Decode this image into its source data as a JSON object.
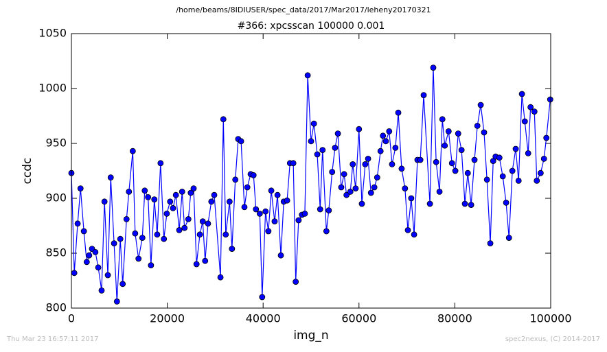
{
  "chart_data": {
    "type": "line",
    "suptitle": "/home/beams/8IDIUSER/spec_data/2017/Mar2017/leheny20170321",
    "title": "#366: xpcsscan 100000 0.001",
    "xlabel": "img_n",
    "ylabel": "ccdc",
    "footer_left": "Thu Mar 23 16:57:11 2017",
    "footer_right": "spec2nexus, (C) 2014-2017",
    "xlim": [
      0,
      100000
    ],
    "ylim": [
      800,
      1050
    ],
    "xticks": [
      0,
      20000,
      40000,
      60000,
      80000,
      100000
    ],
    "yticks": [
      800,
      850,
      900,
      950,
      1000,
      1050
    ],
    "grid": false,
    "color": "#0000ff",
    "x": [
      0,
      600,
      1300,
      1900,
      2600,
      3200,
      3700,
      4300,
      5000,
      5600,
      6300,
      6900,
      7600,
      8200,
      8900,
      9500,
      10200,
      10700,
      11500,
      12000,
      12800,
      13300,
      14000,
      14800,
      15300,
      16000,
      16600,
      17300,
      17900,
      18600,
      19300,
      19900,
      20600,
      21200,
      21800,
      22500,
      23100,
      23600,
      24400,
      24900,
      25500,
      26100,
      26800,
      27400,
      27900,
      28500,
      29200,
      29800,
      31100,
      31700,
      32200,
      33000,
      33500,
      34200,
      34800,
      35400,
      36100,
      36700,
      37400,
      38000,
      38500,
      39300,
      39800,
      40500,
      41100,
      41700,
      42400,
      43000,
      43700,
      44300,
      45000,
      45600,
      46300,
      46800,
      47400,
      48100,
      48700,
      49300,
      50000,
      50600,
      51300,
      51900,
      52400,
      53200,
      53700,
      54400,
      55000,
      55600,
      56300,
      56900,
      57400,
      58200,
      58700,
      59300,
      60000,
      60600,
      61300,
      61900,
      62500,
      63200,
      63800,
      64500,
      65000,
      65600,
      66300,
      66900,
      67600,
      68200,
      68900,
      69600,
      70200,
      70900,
      71500,
      72200,
      72800,
      73500,
      74800,
      75500,
      76100,
      76800,
      77400,
      77900,
      78700,
      79400,
      80100,
      80700,
      81400,
      82100,
      82700,
      83400,
      84100,
      84700,
      85400,
      86100,
      86700,
      87400,
      88000,
      88500,
      89300,
      90000,
      90700,
      91300,
      92000,
      92700,
      93300,
      94000,
      94600,
      95300,
      95800,
      96600,
      97100,
      97900,
      98600,
      99100,
      99900
    ],
    "values": [
      923,
      832,
      877,
      909,
      870,
      842,
      848,
      854,
      851,
      837,
      816,
      897,
      830,
      919,
      859,
      806,
      863,
      822,
      881,
      906,
      943,
      868,
      845,
      864,
      907,
      901,
      839,
      899,
      867,
      932,
      863,
      886,
      897,
      891,
      903,
      871,
      906,
      873,
      881,
      905,
      909,
      840,
      867,
      879,
      843,
      877,
      897,
      903,
      828,
      972,
      867,
      897,
      854,
      917,
      954,
      952,
      892,
      910,
      922,
      921,
      890,
      886,
      810,
      888,
      870,
      907,
      879,
      903,
      848,
      897,
      898,
      932,
      932,
      824,
      880,
      885,
      886,
      1012,
      952,
      968,
      940,
      890,
      944,
      870,
      889,
      924,
      946,
      959,
      910,
      922,
      903,
      906,
      931,
      909,
      963,
      895,
      931,
      936,
      905,
      910,
      919,
      943,
      957,
      952,
      961,
      931,
      946,
      978,
      927,
      909,
      871,
      900,
      867,
      935,
      935,
      994,
      895,
      1019,
      933,
      906,
      972,
      948,
      961,
      932,
      925,
      959,
      944,
      895,
      923,
      894,
      935,
      966,
      985,
      960,
      917,
      859,
      934,
      938,
      937,
      920,
      896,
      864,
      925,
      945,
      916,
      995,
      970,
      941,
      983,
      979,
      916,
      923,
      936,
      955,
      990
    ]
  }
}
